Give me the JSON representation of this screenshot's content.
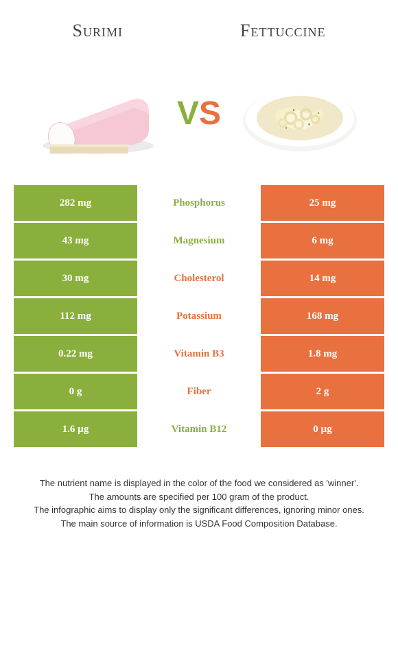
{
  "header": {
    "left": "Surimi",
    "right": "Fettuccine"
  },
  "vs": {
    "v": "V",
    "s": "S"
  },
  "colors": {
    "green": "#8aaf3c",
    "orange": "#e8713f",
    "green_text": "#8aaf3c",
    "orange_text": "#e8713f"
  },
  "rows": [
    {
      "left": "282 mg",
      "label": "Phosphorus",
      "right": "25 mg",
      "winner": "left"
    },
    {
      "left": "43 mg",
      "label": "Magnesium",
      "right": "6 mg",
      "winner": "left"
    },
    {
      "left": "30 mg",
      "label": "Cholesterol",
      "right": "14 mg",
      "winner": "right"
    },
    {
      "left": "112 mg",
      "label": "Potassium",
      "right": "168 mg",
      "winner": "right"
    },
    {
      "left": "0.22 mg",
      "label": "Vitamin B3",
      "right": "1.8 mg",
      "winner": "right"
    },
    {
      "left": "0 g",
      "label": "Fiber",
      "right": "2 g",
      "winner": "right"
    },
    {
      "left": "1.6 µg",
      "label": "Vitamin B12",
      "right": "0 µg",
      "winner": "left"
    }
  ],
  "footer": {
    "l1": "The nutrient name is displayed in the color of the food we considered as 'winner'.",
    "l2": "The amounts are specified per 100 gram of the product.",
    "l3": "The infographic aims to display only the significant differences, ignoring minor ones.",
    "l4": "The main source of information is USDA Food Composition Database."
  }
}
